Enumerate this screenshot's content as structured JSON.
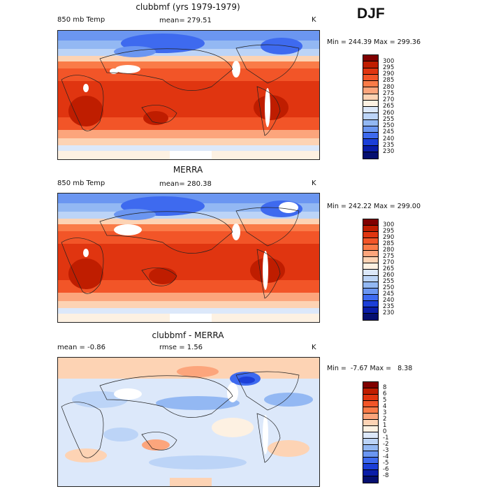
{
  "season": "DJF",
  "panels": [
    {
      "title": "clubbmf (yrs 1979-1979)",
      "field": "850 mb Temp",
      "stat": "mean= 279.51",
      "stat2": "",
      "units": "K",
      "minmax": "Min = 244.39 Max = 299.36",
      "levels": [
        "300",
        "295",
        "290",
        "285",
        "280",
        "275",
        "270",
        "265",
        "260",
        "255",
        "250",
        "245",
        "240",
        "235",
        "230"
      ],
      "colors": [
        "#800000",
        "#bf1d00",
        "#e03510",
        "#f25528",
        "#fa7b48",
        "#fca57c",
        "#fdd3b4",
        "#fdf1e2",
        "#dce8fa",
        "#bcd4f7",
        "#93b8f3",
        "#6b96f1",
        "#3e6aef",
        "#1c3fd8",
        "#0a1da8",
        "#050f70"
      ]
    },
    {
      "title": "MERRA",
      "field": "850 mb Temp",
      "stat": "mean= 280.38",
      "stat2": "",
      "units": "K",
      "minmax": "Min = 242.22 Max = 299.00",
      "levels": [
        "300",
        "295",
        "290",
        "285",
        "280",
        "275",
        "270",
        "265",
        "260",
        "255",
        "250",
        "245",
        "240",
        "235",
        "230"
      ],
      "colors": [
        "#800000",
        "#bf1d00",
        "#e03510",
        "#f25528",
        "#fa7b48",
        "#fca57c",
        "#fdd3b4",
        "#fdf1e2",
        "#dce8fa",
        "#bcd4f7",
        "#93b8f3",
        "#6b96f1",
        "#3e6aef",
        "#1c3fd8",
        "#0a1da8",
        "#050f70"
      ]
    },
    {
      "title": "clubbmf - MERRA",
      "field": "mean =   -0.86",
      "stat": "rmse =   1.56",
      "stat2": "",
      "units": "K",
      "minmax": "Min =  -7.67 Max =   8.38",
      "levels": [
        "8",
        "6",
        "5",
        "4",
        "3",
        "2",
        "1",
        "0",
        "-1",
        "-2",
        "-3",
        "-4",
        "-5",
        "-6",
        "-8"
      ],
      "colors": [
        "#800000",
        "#bf1d00",
        "#e03510",
        "#f25528",
        "#fa7b48",
        "#fca57c",
        "#fdd3b4",
        "#fdf1e2",
        "#dce8fa",
        "#bcd4f7",
        "#93b8f3",
        "#6b96f1",
        "#3e6aef",
        "#1c3fd8",
        "#0a1da8",
        "#050f70"
      ]
    }
  ]
}
